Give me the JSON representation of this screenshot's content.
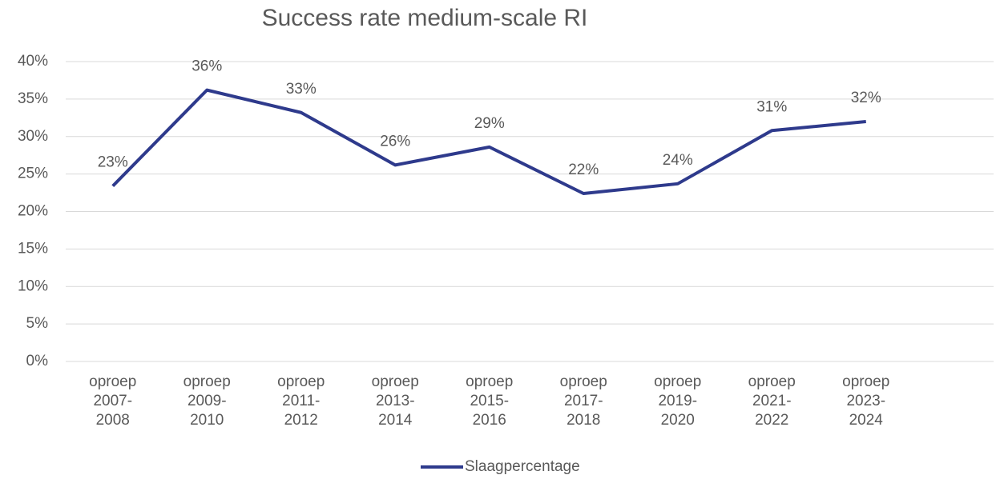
{
  "chart_data": {
    "type": "line",
    "title": "Success rate medium-scale RI",
    "categories": [
      "oproep 2007-2008",
      "oproep 2009-2010",
      "oproep 2011-2012",
      "oproep 2013-2014",
      "oproep 2015-2016",
      "oproep 2017-2018",
      "oproep 2019-2020",
      "oproep 2021-2022",
      "oproep 2023-2024"
    ],
    "series": [
      {
        "name": "Slaagpercentage",
        "color": "#2e3a8c",
        "values": [
          23.4,
          36.2,
          33.2,
          26.2,
          28.6,
          22.4,
          23.7,
          30.8,
          32.0
        ],
        "value_labels": [
          "23%",
          "36%",
          "33%",
          "26%",
          "29%",
          "22%",
          "24%",
          "31%",
          "32%"
        ]
      }
    ],
    "ylim": [
      0,
      40
    ],
    "yticks": [
      {
        "value": 0,
        "label": "0%"
      },
      {
        "value": 5,
        "label": "5%"
      },
      {
        "value": 10,
        "label": "10%"
      },
      {
        "value": 15,
        "label": "15%"
      },
      {
        "value": 20,
        "label": "20%"
      },
      {
        "value": 25,
        "label": "25%"
      },
      {
        "value": 30,
        "label": "30%"
      },
      {
        "value": 35,
        "label": "35%"
      },
      {
        "value": 40,
        "label": "40%"
      }
    ],
    "grid": true,
    "legend": "bottom"
  }
}
